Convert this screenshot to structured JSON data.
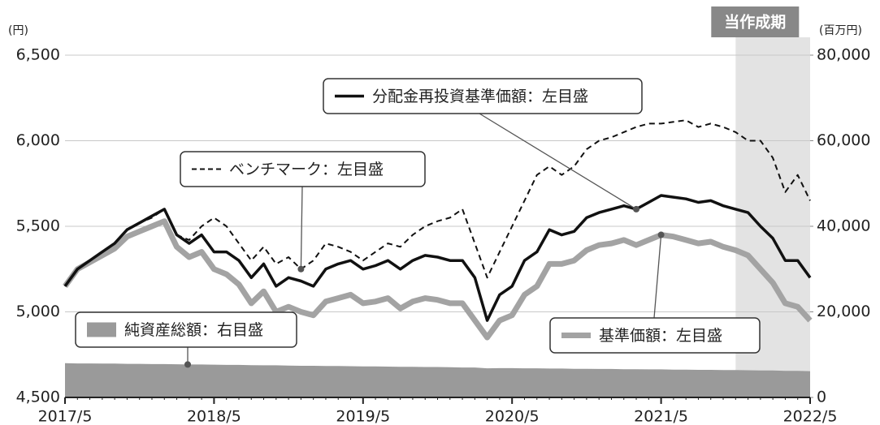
{
  "chart_data": {
    "type": "line",
    "y_unit": "(円)",
    "y2_unit": "(百万円)",
    "period": {
      "label": "当作成期",
      "start": "2021/11",
      "end": "2022/5",
      "color": "#e3e3e3",
      "label_color": "#888888"
    },
    "x": [
      "2017/5",
      "2017/6",
      "2017/7",
      "2017/8",
      "2017/9",
      "2017/10",
      "2017/11",
      "2017/12",
      "2018/1",
      "2018/2",
      "2018/3",
      "2018/4",
      "2018/5",
      "2018/6",
      "2018/7",
      "2018/8",
      "2018/9",
      "2018/10",
      "2018/11",
      "2018/12",
      "2019/1",
      "2019/2",
      "2019/3",
      "2019/4",
      "2019/5",
      "2019/6",
      "2019/7",
      "2019/8",
      "2019/9",
      "2019/10",
      "2019/11",
      "2019/12",
      "2020/1",
      "2020/2",
      "2020/3",
      "2020/4",
      "2020/5",
      "2020/6",
      "2020/7",
      "2020/8",
      "2020/9",
      "2020/10",
      "2020/11",
      "2020/12",
      "2021/1",
      "2021/2",
      "2021/3",
      "2021/4",
      "2021/5",
      "2021/6",
      "2021/7",
      "2021/8",
      "2021/9",
      "2021/10",
      "2021/11",
      "2021/12",
      "2022/1",
      "2022/2",
      "2022/3",
      "2022/4",
      "2022/5"
    ],
    "ylim": [
      4500,
      6500
    ],
    "yticks": [
      {
        "value": 4500,
        "label": "4,500"
      },
      {
        "value": 5000,
        "label": "5,000"
      },
      {
        "value": 5500,
        "label": "5,500"
      },
      {
        "value": 6000,
        "label": "6,000"
      },
      {
        "value": 6500,
        "label": "6,500"
      }
    ],
    "y2lim": [
      0,
      80000
    ],
    "y2ticks": [
      0,
      {
        "value": 20000,
        "label": "20,000"
      },
      {
        "value": 40000,
        "label": "40,000"
      },
      {
        "value": 60000,
        "label": "60,000"
      },
      {
        "value": 80000,
        "label": "80,000"
      }
    ],
    "grid": true,
    "series": [
      {
        "name": "純資産総額：右目盛",
        "type": "area",
        "axis": "y2",
        "color": "#9a9a9a",
        "values": [
          8000,
          7950,
          7950,
          7900,
          7900,
          7850,
          7850,
          7800,
          7800,
          7750,
          7700,
          7700,
          7650,
          7600,
          7600,
          7550,
          7500,
          7500,
          7450,
          7400,
          7400,
          7350,
          7350,
          7300,
          7250,
          7250,
          7200,
          7150,
          7150,
          7100,
          7100,
          7050,
          7000,
          7000,
          6800,
          6850,
          6850,
          6800,
          6800,
          6750,
          6750,
          6700,
          6700,
          6650,
          6650,
          6600,
          6600,
          6550,
          6550,
          6500,
          6500,
          6450,
          6450,
          6400,
          6400,
          6350,
          6300,
          6300,
          6200,
          6200,
          6150
        ]
      },
      {
        "name": "基準価額：左目盛",
        "type": "line",
        "color": "#a3a3a3",
        "width": 7,
        "values": [
          5150,
          5250,
          5290,
          5330,
          5370,
          5440,
          5470,
          5500,
          5530,
          5380,
          5320,
          5350,
          5250,
          5220,
          5160,
          5050,
          5120,
          5000,
          5030,
          5000,
          4980,
          5060,
          5080,
          5100,
          5050,
          5060,
          5080,
          5020,
          5060,
          5080,
          5070,
          5050,
          5050,
          4950,
          4850,
          4950,
          4980,
          5100,
          5150,
          5280,
          5280,
          5300,
          5360,
          5390,
          5400,
          5420,
          5390,
          5420,
          5450,
          5440,
          5420,
          5400,
          5410,
          5380,
          5360,
          5330,
          5250,
          5170,
          5050,
          5030,
          4950
        ]
      },
      {
        "name": "ベンチマーク：左目盛",
        "type": "line",
        "dash": true,
        "color": "#111111",
        "width": 2,
        "values": [
          5150,
          5250,
          5300,
          5350,
          5400,
          5480,
          5520,
          5550,
          5600,
          5450,
          5420,
          5500,
          5550,
          5500,
          5400,
          5300,
          5380,
          5280,
          5320,
          5250,
          5300,
          5400,
          5380,
          5350,
          5300,
          5350,
          5400,
          5380,
          5450,
          5500,
          5530,
          5550,
          5600,
          5400,
          5200,
          5350,
          5500,
          5650,
          5800,
          5850,
          5800,
          5850,
          5950,
          6000,
          6020,
          6050,
          6080,
          6100,
          6100,
          6110,
          6120,
          6080,
          6100,
          6080,
          6050,
          6000,
          6000,
          5900,
          5700,
          5800,
          5650
        ]
      },
      {
        "name": "分配金再投資基準価額：左目盛",
        "type": "line",
        "color": "#111111",
        "width": 3.5,
        "values": [
          5150,
          5250,
          5300,
          5350,
          5400,
          5480,
          5520,
          5560,
          5600,
          5450,
          5400,
          5450,
          5350,
          5350,
          5300,
          5200,
          5280,
          5150,
          5200,
          5180,
          5150,
          5250,
          5280,
          5300,
          5250,
          5270,
          5300,
          5250,
          5300,
          5330,
          5320,
          5300,
          5300,
          5200,
          4950,
          5100,
          5150,
          5300,
          5350,
          5480,
          5450,
          5470,
          5550,
          5580,
          5600,
          5620,
          5600,
          5640,
          5680,
          5670,
          5660,
          5640,
          5650,
          5620,
          5600,
          5580,
          5500,
          5430,
          5300,
          5300,
          5200
        ]
      }
    ]
  }
}
